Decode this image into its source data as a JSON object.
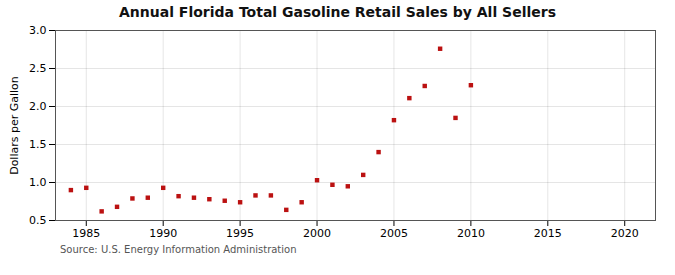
{
  "chart_data": {
    "type": "scatter",
    "title": "Annual Florida Total Gasoline Retail Sales by All Sellers",
    "ylabel": "Dollars per Gallon",
    "source": "Source: U.S. Energy Information Administration",
    "x": [
      1984,
      1985,
      1986,
      1987,
      1988,
      1989,
      1990,
      1991,
      1992,
      1993,
      1994,
      1995,
      1996,
      1997,
      1998,
      1999,
      2000,
      2001,
      2002,
      2003,
      2004,
      2005,
      2006,
      2007,
      2008,
      2009,
      2010
    ],
    "values": [
      0.9,
      0.93,
      0.62,
      0.68,
      0.79,
      0.8,
      0.93,
      0.82,
      0.8,
      0.78,
      0.76,
      0.74,
      0.83,
      0.83,
      0.64,
      0.74,
      1.03,
      0.97,
      0.95,
      1.1,
      1.4,
      1.82,
      2.11,
      2.27,
      2.76,
      1.85,
      2.28
    ],
    "color": "#BB1111",
    "marker": "square",
    "xlim": [
      1983,
      2022
    ],
    "xticks": [
      1985,
      1990,
      1995,
      2000,
      2005,
      2010,
      2015,
      2020
    ],
    "ylim": [
      0.5,
      3.0
    ],
    "yticks": [
      0.5,
      {
        "value": 1.0,
        "label": "1.0"
      },
      1.5,
      {
        "value": 2.0,
        "label": "2.0"
      },
      2.5,
      {
        "value": 3.0,
        "label": "3.0"
      }
    ],
    "grid": true
  }
}
